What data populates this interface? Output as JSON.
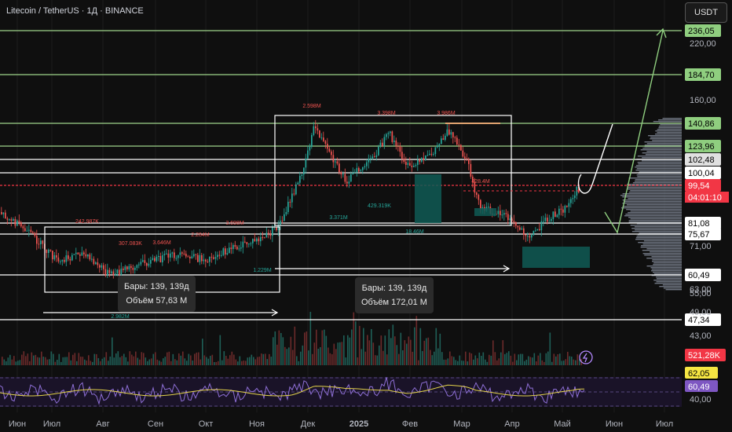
{
  "header": {
    "title": "Litecoin / TetherUS · 1Д · BINANCE"
  },
  "currency_button": "USDT",
  "chart_data": {
    "type": "candlestick",
    "title": "Litecoin / TetherUS · 1Д · BINANCE",
    "x_ticks": [
      "Июн",
      "Июл",
      "Авг",
      "Сен",
      "Окт",
      "Ноя",
      "Дек",
      "2025",
      "Фев",
      "Мар",
      "Апр",
      "Май",
      "Июн",
      "Июл"
    ],
    "y_ticks": [
      "220,00",
      "160,00",
      "71,00",
      "63,00",
      "55,00",
      "49,00",
      "43,00"
    ],
    "y_log": true,
    "levels": [
      {
        "label": "236,05",
        "color": "#ffffff",
        "bg": "#8fce7f",
        "fg": "#000000"
      },
      {
        "label": "184,70",
        "color": "#ffffff",
        "bg": "#8fce7f",
        "fg": "#000000"
      },
      {
        "label": "140,86",
        "color": "#ffffff",
        "bg": "#8fce7f",
        "fg": "#000000"
      },
      {
        "label": "123,96",
        "color": "#ffffff",
        "bg": "#8fce7f",
        "fg": "#000000"
      },
      {
        "label": "102,48",
        "color": "#ffffff",
        "bg": "#e0e0e0",
        "fg": "#000000"
      },
      {
        "label": "100,04",
        "color": "#ffffff",
        "bg": "#ffffff",
        "fg": "#000000"
      },
      {
        "label": "99,54",
        "color": "#f23645",
        "bg": "#f23645",
        "fg": "#ffffff"
      },
      {
        "label": "81,08",
        "color": "#ffffff",
        "bg": "#ffffff",
        "fg": "#000000"
      },
      {
        "label": "75,67",
        "color": "#ffffff",
        "bg": "#ffffff",
        "fg": "#000000"
      },
      {
        "label": "60,49",
        "color": "#ffffff",
        "bg": "#ffffff",
        "fg": "#000000"
      },
      {
        "label": "47,34",
        "color": "#ffffff",
        "bg": "#ffffff",
        "fg": "#000000"
      }
    ],
    "countdown": "04:01:10",
    "volume_label": "521,28K",
    "rsi": {
      "ticks": [
        "40,00"
      ],
      "rsi_value": "60,49",
      "ma_value": "62,05"
    },
    "annotations": [
      "2.598M",
      "3.398M",
      "3.986M",
      "242.987K",
      "307.083K",
      "3.646M",
      "2.284M",
      "3.698M",
      "3.371M",
      "429.319K",
      "18.46M",
      "1.229M",
      "2.982M",
      "428.4M"
    ]
  },
  "measure_boxes": [
    {
      "bars": "Бары: 139, 139д",
      "volume": "Объём 57,63 M"
    },
    {
      "bars": "Бары: 139, 139д",
      "volume": "Объём 172,01 M"
    }
  ]
}
